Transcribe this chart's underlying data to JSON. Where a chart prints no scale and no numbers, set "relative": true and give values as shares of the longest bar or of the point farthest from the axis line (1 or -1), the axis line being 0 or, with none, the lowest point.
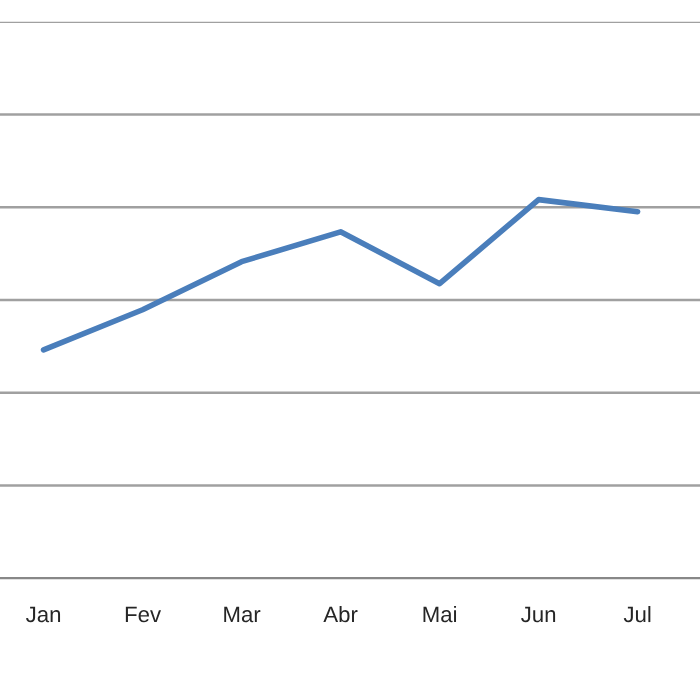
{
  "chart_data": {
    "type": "line",
    "relative": true,
    "categories": [
      "Jan",
      "Fev",
      "Mar",
      "Abr",
      "Mai",
      "Jun",
      "Jul"
    ],
    "series": [
      {
        "color": "#4a7ebb",
        "values": [
          0.603,
          0.709,
          0.836,
          0.915,
          0.778,
          1,
          0.968
        ]
      }
    ],
    "grid": "y",
    "marker": "none",
    "line_style": "solid",
    "legend": false
  }
}
